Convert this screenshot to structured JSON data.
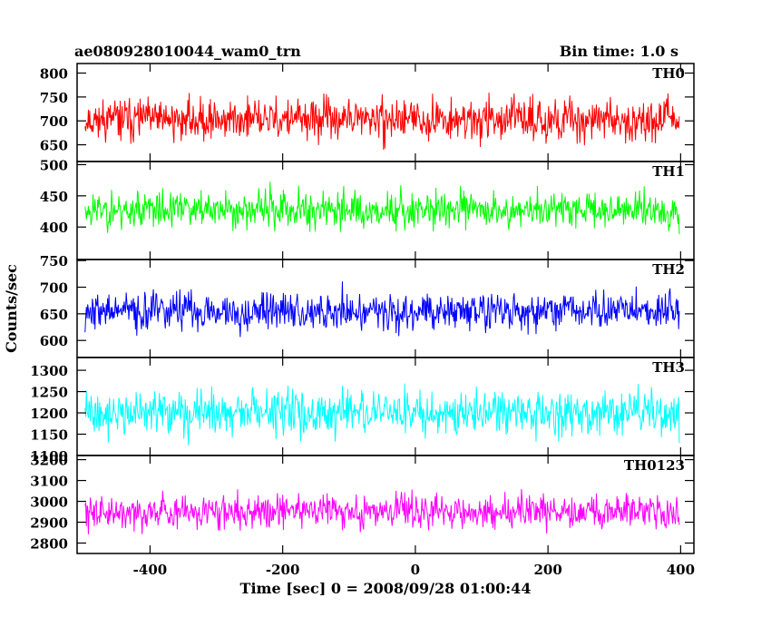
{
  "header": {
    "file_title": "ae080928010044_wam0_trn",
    "bin_time": "Bin time: 1.0 s"
  },
  "chart_data": {
    "type": "line",
    "xlabel": "Time [sec] 0 = 2008/09/28 01:00:44",
    "ylabel": "Counts/sec",
    "xlim": [
      -510,
      420
    ],
    "x_ticks": [
      -400,
      -200,
      0,
      200,
      400
    ],
    "x_start": -498,
    "x_end": 398,
    "bin_time_s": 1.0,
    "panels": [
      {
        "name": "TH0",
        "color": "#ff0000",
        "ylim": [
          615,
          820
        ],
        "y_ticks": [
          650,
          700,
          750,
          800
        ],
        "mean": 703,
        "spread": 38,
        "seed": 11
      },
      {
        "name": "TH1",
        "color": "#00ff00",
        "ylim": [
          348,
          505
        ],
        "y_ticks": [
          400,
          450,
          500
        ],
        "mean": 428,
        "spread": 27,
        "seed": 23
      },
      {
        "name": "TH2",
        "color": "#0000ff",
        "ylim": [
          568,
          752
        ],
        "y_ticks": [
          600,
          650,
          700,
          750
        ],
        "mean": 655,
        "spread": 32,
        "seed": 37
      },
      {
        "name": "TH3",
        "color": "#00ffff",
        "ylim": [
          1100,
          1330
        ],
        "y_ticks": [
          1100,
          1150,
          1200,
          1250,
          1300
        ],
        "mean": 1200,
        "spread": 45,
        "seed": 41
      },
      {
        "name": "TH0123",
        "color": "#ff00ff",
        "ylim": [
          2750,
          3220
        ],
        "y_ticks": [
          2800,
          2900,
          3000,
          3100,
          3200
        ],
        "mean": 2955,
        "spread": 75,
        "seed": 59
      }
    ]
  }
}
